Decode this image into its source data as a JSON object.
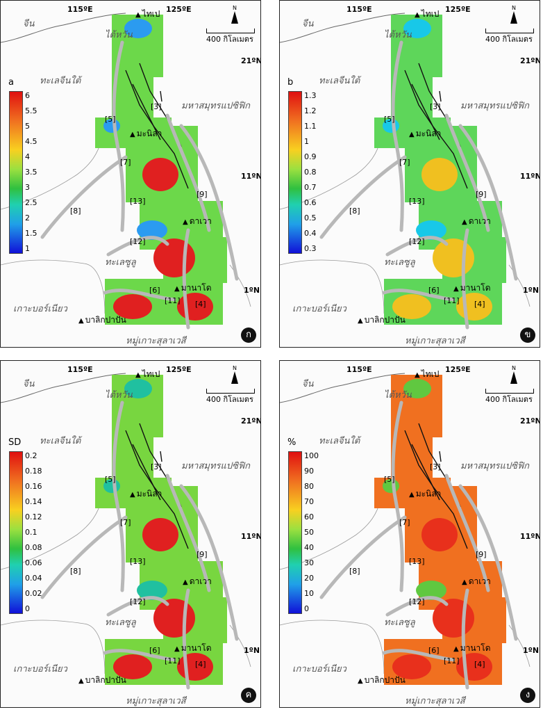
{
  "map_labels": {
    "china": "จีน",
    "taiwan": "ไต้หวัน",
    "south_china_sea": "ทะเลจีนใต้",
    "pacific": "มหาสมุทรแปซิฟิก",
    "sulu_sea": "ทะเลซูลู",
    "borneo": "เกาะบอร์เนียว",
    "sulawesi": "หมู่เกาะสุลาเวสี",
    "lon_115": "115ºE",
    "lon_125": "125ºE",
    "lat_21": "21ºN",
    "lat_11": "11ºN",
    "lat_1": "1ºN",
    "scale": "400 กิโลเมตร",
    "north": "N"
  },
  "cities": {
    "taipei": "ไทเป",
    "manila": "มะนิลา",
    "davao": "ดาเวา",
    "manado": "มานาโด",
    "balikpapan": "บาลิกปาปัน"
  },
  "zones": [
    "[3]",
    "[4]",
    "[5]",
    "[6]",
    "[7]",
    "[8]",
    "[9]",
    "[11]",
    "[12]",
    "[13]"
  ],
  "panels": [
    {
      "badge": "ก",
      "legend_title": "a",
      "legend_ticks": [
        "6",
        "5.5",
        "5",
        "4.5",
        "4",
        "3.5",
        "3",
        "2.5",
        "2",
        "1.5",
        "1"
      ],
      "colors": {
        "high": "#e02020",
        "mid": "#6cd84a",
        "low": "#2b9bf0"
      }
    },
    {
      "badge": "ข",
      "legend_title": "b",
      "legend_ticks": [
        "1.3",
        "1.2",
        "1.1",
        "1",
        "0.9",
        "0.8",
        "0.7",
        "0.6",
        "0.5",
        "0.4",
        "0.3"
      ],
      "colors": {
        "high": "#f0c020",
        "mid": "#5ed65a",
        "low": "#18c8e8"
      }
    },
    {
      "badge": "ค",
      "legend_title": "SD",
      "legend_ticks": [
        "0.2",
        "0.18",
        "0.16",
        "0.14",
        "0.12",
        "0.1",
        "0.08",
        "0.06",
        "0.04",
        "0.02",
        "0"
      ],
      "colors": {
        "high": "#e02020",
        "mid": "#78d640",
        "low": "#20c0a0"
      }
    },
    {
      "badge": "ง",
      "legend_title": "%",
      "legend_ticks": [
        "100",
        "90",
        "80",
        "70",
        "60",
        "50",
        "40",
        "30",
        "20",
        "10",
        "0"
      ],
      "colors": {
        "high": "#e8301c",
        "mid": "#f07020",
        "low": "#60c840"
      }
    }
  ]
}
